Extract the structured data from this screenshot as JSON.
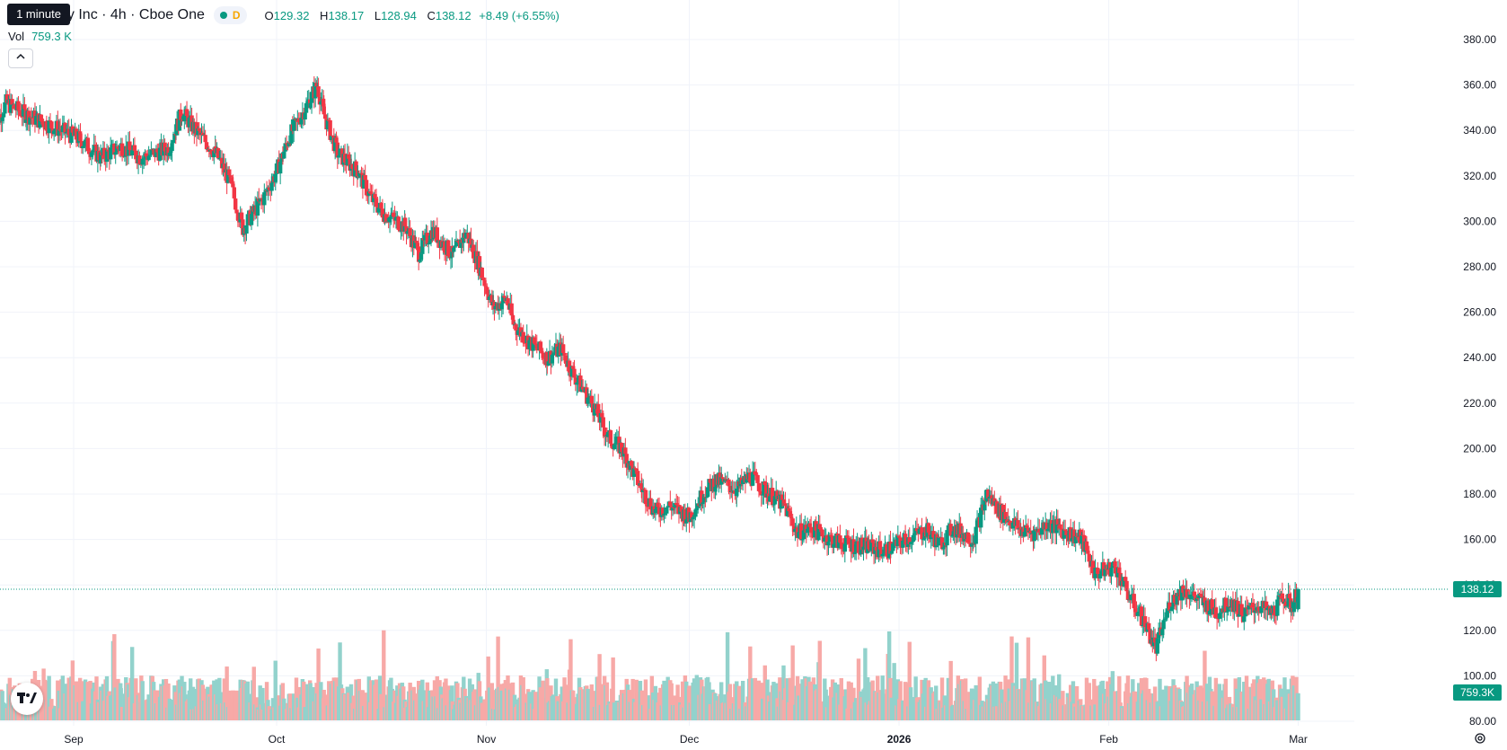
{
  "legend": {
    "symbol": "gy Inc · 4h · Cboe One",
    "tooltip": "1 minute",
    "interval_badge": "D",
    "ohlc": {
      "o_label": "O",
      "o": "129.32",
      "h_label": "H",
      "h": "138.17",
      "l_label": "L",
      "l": "128.94",
      "c_label": "C",
      "c": "138.12",
      "change": "+8.49 (+6.55%)"
    },
    "vol_label": "Vol",
    "vol_value": "759.3 K",
    "collapse_icon": "chevron-up-icon"
  },
  "price_label": "138.12",
  "volume_label": "759.3K",
  "colors": {
    "up": "#089981",
    "down": "#f23645",
    "up_vol": "#92d2cc",
    "down_vol": "#f7a9a7",
    "grid": "#f0f3fa",
    "price_line": "#089981"
  },
  "chart_data": {
    "type": "candlestick",
    "interval": "4h",
    "ylim": [
      80,
      380
    ],
    "y_ticks": [
      "80.00",
      "100.00",
      "120.00",
      "140.00",
      "160.00",
      "180.00",
      "200.00",
      "220.00",
      "240.00",
      "260.00",
      "280.00",
      "300.00",
      "320.00",
      "340.00",
      "360.00",
      "380.00"
    ],
    "x_ticks": [
      {
        "label": "Sep",
        "date": "2025-09-01"
      },
      {
        "label": "Oct",
        "date": "2025-10-01"
      },
      {
        "label": "Nov",
        "date": "2025-11-01"
      },
      {
        "label": "Dec",
        "date": "2025-12-01"
      },
      {
        "label": "2026",
        "date": "2026-01-01"
      },
      {
        "label": "Feb",
        "date": "2026-02-01"
      },
      {
        "label": "Mar",
        "date": "2026-03-01"
      }
    ],
    "close_path": [
      [
        "2025-08-20",
        340
      ],
      [
        "2025-08-22",
        352
      ],
      [
        "2025-08-25",
        347
      ],
      [
        "2025-08-28",
        343
      ],
      [
        "2025-09-02",
        336
      ],
      [
        "2025-09-05",
        328
      ],
      [
        "2025-09-08",
        333
      ],
      [
        "2025-09-11",
        328
      ],
      [
        "2025-09-15",
        332
      ],
      [
        "2025-09-17",
        348
      ],
      [
        "2025-09-19",
        340
      ],
      [
        "2025-09-22",
        330
      ],
      [
        "2025-09-24",
        318
      ],
      [
        "2025-09-26",
        297
      ],
      [
        "2025-09-29",
        310
      ],
      [
        "2025-10-01",
        322
      ],
      [
        "2025-10-03",
        338
      ],
      [
        "2025-10-06",
        354
      ],
      [
        "2025-10-07",
        360
      ],
      [
        "2025-10-08",
        347
      ],
      [
        "2025-10-10",
        330
      ],
      [
        "2025-10-13",
        322
      ],
      [
        "2025-10-15",
        310
      ],
      [
        "2025-10-17",
        303
      ],
      [
        "2025-10-20",
        298
      ],
      [
        "2025-10-22",
        286
      ],
      [
        "2025-10-24",
        296
      ],
      [
        "2025-10-27",
        285
      ],
      [
        "2025-10-29",
        295
      ],
      [
        "2025-10-31",
        280
      ],
      [
        "2025-11-02",
        262
      ],
      [
        "2025-11-04",
        266
      ],
      [
        "2025-11-05",
        255
      ],
      [
        "2025-11-07",
        248
      ],
      [
        "2025-11-10",
        240
      ],
      [
        "2025-11-12",
        244
      ],
      [
        "2025-11-14",
        232
      ],
      [
        "2025-11-17",
        218
      ],
      [
        "2025-11-19",
        205
      ],
      [
        "2025-11-21",
        200
      ],
      [
        "2025-11-24",
        182
      ],
      [
        "2025-11-26",
        172
      ],
      [
        "2025-11-28",
        175
      ],
      [
        "2025-12-01",
        170
      ],
      [
        "2025-12-03",
        180
      ],
      [
        "2025-12-05",
        186
      ],
      [
        "2025-12-08",
        182
      ],
      [
        "2025-12-10",
        188
      ],
      [
        "2025-12-12",
        182
      ],
      [
        "2025-12-15",
        175
      ],
      [
        "2025-12-17",
        163
      ],
      [
        "2025-12-19",
        165
      ],
      [
        "2025-12-22",
        160
      ],
      [
        "2025-12-24",
        158
      ],
      [
        "2025-12-27",
        157
      ],
      [
        "2025-12-30",
        155
      ],
      [
        "2026-01-02",
        160
      ],
      [
        "2026-01-05",
        164
      ],
      [
        "2026-01-07",
        158
      ],
      [
        "2026-01-09",
        165
      ],
      [
        "2026-01-12",
        160
      ],
      [
        "2026-01-14",
        180
      ],
      [
        "2026-01-16",
        172
      ],
      [
        "2026-01-19",
        164
      ],
      [
        "2026-01-21",
        163
      ],
      [
        "2026-01-23",
        167
      ],
      [
        "2026-01-26",
        163
      ],
      [
        "2026-01-28",
        160
      ],
      [
        "2026-01-30",
        145
      ],
      [
        "2026-02-02",
        148
      ],
      [
        "2026-02-04",
        135
      ],
      [
        "2026-02-06",
        125
      ],
      [
        "2026-02-08",
        112
      ],
      [
        "2026-02-10",
        132
      ],
      [
        "2026-02-12",
        138
      ],
      [
        "2026-02-15",
        132
      ],
      [
        "2026-02-17",
        128
      ],
      [
        "2026-02-19",
        133
      ],
      [
        "2026-02-21",
        127
      ],
      [
        "2026-02-23",
        131
      ],
      [
        "2026-02-25",
        127
      ],
      [
        "2026-02-27",
        135
      ],
      [
        "2026-02-28",
        130
      ],
      [
        "2026-03-01",
        138.12
      ]
    ],
    "last_candle": {
      "open": 129.32,
      "high": 138.17,
      "low": 128.94,
      "close": 138.12,
      "volume": "759.3K"
    }
  }
}
